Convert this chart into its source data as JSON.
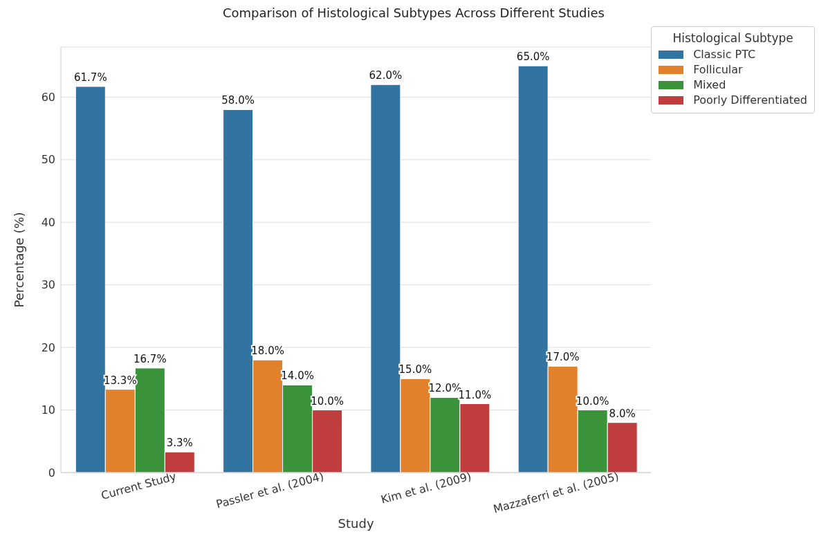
{
  "chart_data": {
    "type": "bar",
    "title": "Comparison of Histological Subtypes Across Different Studies",
    "xlabel": "Study",
    "ylabel": "Percentage (%)",
    "legend_title": "Histological Subtype",
    "categories": [
      "Current Study",
      "Passler et al. (2004)",
      "Kim et al. (2009)",
      "Mazzaferri et al. (2005)"
    ],
    "series": [
      {
        "name": "Classic PTC",
        "color": "#3274a1",
        "values": [
          61.7,
          58.0,
          62.0,
          65.0
        ],
        "value_labels": [
          "61.7%",
          "58.0%",
          "62.0%",
          "65.0%"
        ]
      },
      {
        "name": "Follicular",
        "color": "#e1812c",
        "values": [
          13.3,
          18.0,
          15.0,
          17.0
        ],
        "value_labels": [
          "13.3%",
          "18.0%",
          "15.0%",
          "17.0%"
        ]
      },
      {
        "name": "Mixed",
        "color": "#3a923a",
        "values": [
          16.7,
          14.0,
          12.0,
          10.0
        ],
        "value_labels": [
          "16.7%",
          "14.0%",
          "12.0%",
          "10.0%"
        ]
      },
      {
        "name": "Poorly Differentiated",
        "color": "#c03d3e",
        "values": [
          3.3,
          10.0,
          11.0,
          8.0
        ],
        "value_labels": [
          "3.3%",
          "10.0%",
          "11.0%",
          "8.0%"
        ]
      }
    ],
    "ylim": [
      0,
      68
    ],
    "yticks": [
      0,
      10,
      20,
      30,
      40,
      50,
      60
    ],
    "grid": "y",
    "legend": "top right"
  }
}
